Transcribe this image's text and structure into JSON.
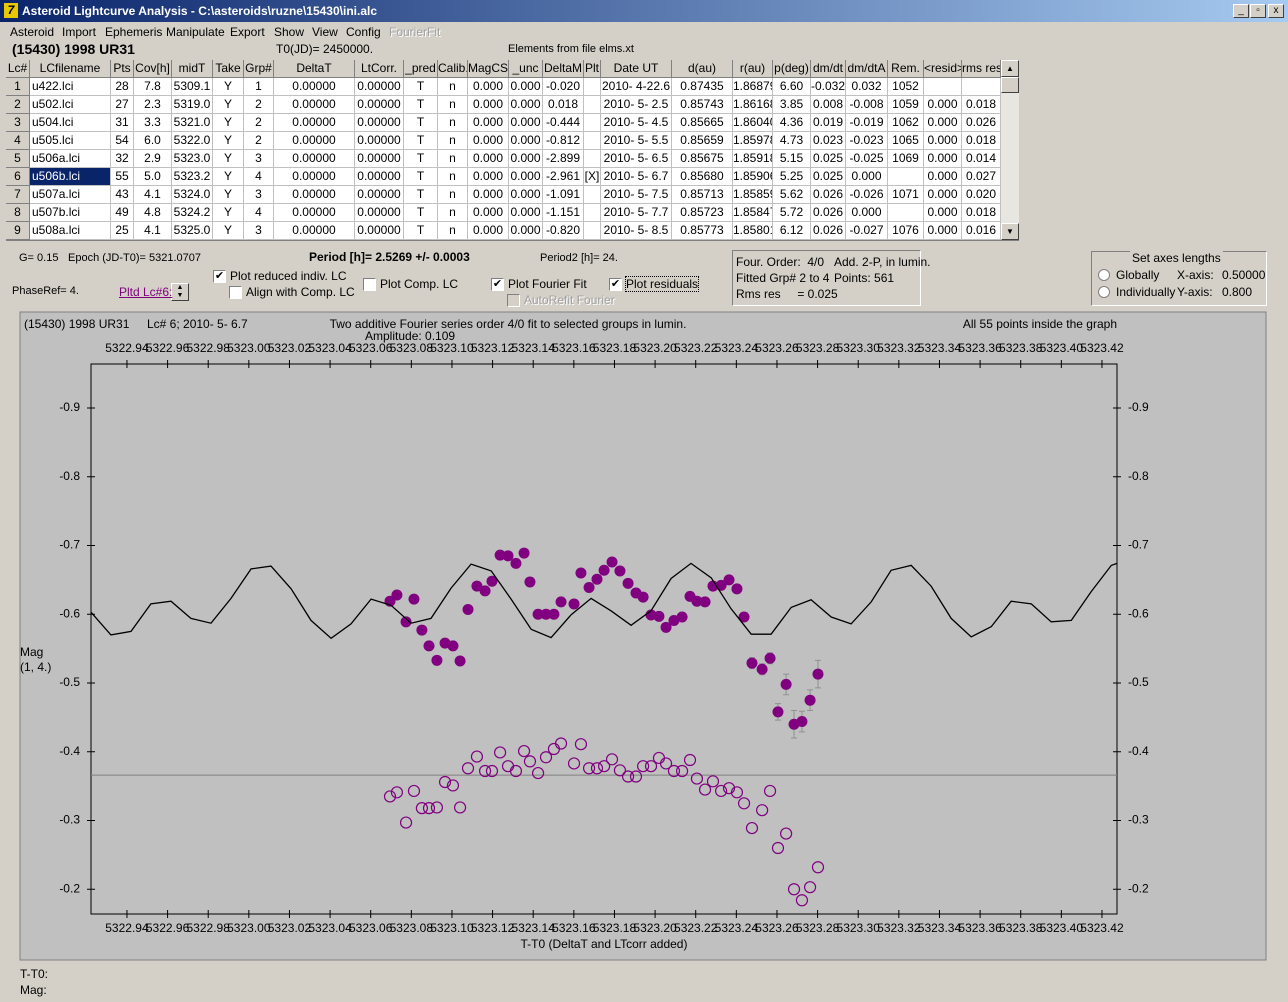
{
  "window": {
    "title": "Asteroid Lightcurve Analysis - C:\\asteroids\\ruzne\\15430\\ini.alc"
  },
  "menu": [
    {
      "label": "Asteroid"
    },
    {
      "label": "Import"
    },
    {
      "label": "Ephemeris"
    },
    {
      "label": "Manipulate"
    },
    {
      "label": "Export"
    },
    {
      "label": "Show"
    },
    {
      "label": "View"
    },
    {
      "label": "Config"
    },
    {
      "label": "FourierFit",
      "disabled": true
    }
  ],
  "header": {
    "object": "(15430) 1998 UR31",
    "t0": "T0(JD)= 2450000.",
    "elements": "Elements from file elms.xt"
  },
  "table": {
    "columns": [
      "Lc#",
      "LCfilename",
      "Pts",
      "Cov[h]",
      "midT",
      "Take",
      "Grp#",
      "DeltaT",
      "LtCorr.",
      "_pred",
      "Calib.",
      "MagCS",
      "_unc",
      "DeltaM",
      "Plt",
      "Date UT",
      "d(au)",
      "r(au)",
      "p(deg)",
      "dm/dt",
      "dm/dtA",
      "Rem.",
      "<resid>",
      "rms res"
    ],
    "selected_row": 5,
    "rows": [
      [
        "1",
        "u422.lci",
        "28",
        "7.8",
        "5309.1",
        "Y",
        "1",
        "0.00000",
        "0.00000",
        "T",
        "n",
        "0.000",
        "0.000",
        "-0.020",
        null,
        "2010- 4-22.6",
        "0.87435",
        "1.86879",
        "6.60",
        "-0.032",
        "0.032",
        "1052",
        null,
        null
      ],
      [
        "2",
        "u502.lci",
        "27",
        "2.3",
        "5319.0",
        "Y",
        "2",
        "0.00000",
        "0.00000",
        "T",
        "n",
        "0.000",
        "0.000",
        "0.018",
        null,
        "2010- 5- 2.5",
        "0.85743",
        "1.86168",
        "3.85",
        "0.008",
        "-0.008",
        "1059",
        "0.000",
        "0.018"
      ],
      [
        "3",
        "u504.lci",
        "31",
        "3.3",
        "5321.0",
        "Y",
        "2",
        "0.00000",
        "0.00000",
        "T",
        "n",
        "0.000",
        "0.000",
        "-0.444",
        null,
        "2010- 5- 4.5",
        "0.85665",
        "1.86040",
        "4.36",
        "0.019",
        "-0.019",
        "1062",
        "0.000",
        "0.026"
      ],
      [
        "4",
        "u505.lci",
        "54",
        "6.0",
        "5322.0",
        "Y",
        "2",
        "0.00000",
        "0.00000",
        "T",
        "n",
        "0.000",
        "0.000",
        "-0.812",
        null,
        "2010- 5- 5.5",
        "0.85659",
        "1.85978",
        "4.73",
        "0.023",
        "-0.023",
        "1065",
        "0.000",
        "0.018"
      ],
      [
        "5",
        "u506a.lci",
        "32",
        "2.9",
        "5323.0",
        "Y",
        "3",
        "0.00000",
        "0.00000",
        "T",
        "n",
        "0.000",
        "0.000",
        "-2.899",
        null,
        "2010- 5- 6.5",
        "0.85675",
        "1.85918",
        "5.15",
        "0.025",
        "-0.025",
        "1069",
        "0.000",
        "0.014"
      ],
      [
        "6",
        "u506b.lci",
        "55",
        "5.0",
        "5323.2",
        "Y",
        "4",
        "0.00000",
        "0.00000",
        "T",
        "n",
        "0.000",
        "0.000",
        "-2.961",
        "[X]",
        "2010- 5- 6.7",
        "0.85680",
        "1.85906",
        "5.25",
        "0.025",
        "0.000",
        null,
        "0.000",
        "0.027"
      ],
      [
        "7",
        "u507a.lci",
        "43",
        "4.1",
        "5324.0",
        "Y",
        "3",
        "0.00000",
        "0.00000",
        "T",
        "n",
        "0.000",
        "0.000",
        "-1.091",
        null,
        "2010- 5- 7.5",
        "0.85713",
        "1.85859",
        "5.62",
        "0.026",
        "-0.026",
        "1071",
        "0.000",
        "0.020"
      ],
      [
        "8",
        "u507b.lci",
        "49",
        "4.8",
        "5324.2",
        "Y",
        "4",
        "0.00000",
        "0.00000",
        "T",
        "n",
        "0.000",
        "0.000",
        "-1.151",
        null,
        "2010- 5- 7.7",
        "0.85723",
        "1.85847",
        "5.72",
        "0.026",
        "0.000",
        null,
        "0.000",
        "0.018"
      ],
      [
        "9",
        "u508a.lci",
        "25",
        "4.1",
        "5325.0",
        "Y",
        "3",
        "0.00000",
        "0.00000",
        "T",
        "n",
        "0.000",
        "0.000",
        "-0.820",
        null,
        "2010- 5- 8.5",
        "0.85773",
        "1.85801",
        "6.12",
        "0.026",
        "-0.027",
        "1076",
        "0.000",
        "0.016"
      ]
    ]
  },
  "controls": {
    "g": "G= 0.15",
    "epoch": "Epoch (JD-T0)= 5321.0707",
    "period": "Period [h]= 2.5269 +/- 0.0003",
    "period2": "Period2 [h]= 24.",
    "phaseref": "PhaseRef= 4.",
    "pltd": "Pltd Lc#6:",
    "checkboxes": [
      {
        "label": "Plot reduced indiv. LC",
        "checked": true
      },
      {
        "label": "Align with Comp. LC",
        "checked": false
      },
      {
        "label": "Plot Comp. LC",
        "checked": false
      },
      {
        "label": "Plot Fourier Fit",
        "checked": true
      },
      {
        "label": "AutoRefit Fourier",
        "checked": false,
        "disabled": true
      },
      {
        "label": "Plot residuals",
        "checked": true,
        "focused": true
      }
    ],
    "fit_info": [
      "Four. Order:  4/0",
      "Add. 2-P, in lumin.",
      "Fitted Grp# 2 to 4",
      "Points: 561",
      "Rms res     = 0.025"
    ],
    "axes": {
      "title": "Set axes lengths",
      "options": [
        "Globally",
        "Individually"
      ],
      "x_label": "X-axis:",
      "x_value": "0.50000",
      "y_label": "Y-axis:",
      "y_value": "0.800"
    }
  },
  "chart_data": {
    "type": "scatter",
    "object": "(15430) 1998 UR31",
    "lc": "Lc# 6; 2010- 5- 6.7",
    "title": "Two additive Fourier series order 4/0 fit to selected groups in lumin.",
    "subtitle": "Amplitude: 0.109",
    "note": "All 55 points inside the graph",
    "x_label": "T-T0 (DeltaT and LTcorr added)",
    "y_label": [
      "Mag",
      "(1, 4.)"
    ],
    "xlim": [
      5322.9223,
      5323.4274
    ],
    "ylim": [
      -0.164,
      -0.964
    ],
    "xticks": [
      5322.94,
      5322.96,
      5322.98,
      {
        "value": 5323.0,
        "label": "5323.00"
      },
      5323.02,
      5323.04,
      5323.06,
      5323.08,
      {
        "value": 5323.1,
        "label": "5323.10"
      },
      5323.12,
      5323.14,
      5323.16,
      5323.18,
      {
        "value": 5323.2,
        "label": "5323.20"
      },
      5323.22,
      5323.24,
      5323.26,
      5323.28,
      {
        "value": 5323.3,
        "label": "5323.30"
      },
      5323.32,
      5323.34,
      5323.36,
      5323.38,
      {
        "value": 5323.4,
        "label": "5323.40"
      },
      5323.42
    ],
    "yticks": [
      -0.9,
      -0.8,
      -0.7,
      -0.6,
      -0.5,
      -0.4,
      -0.3,
      -0.2
    ],
    "x": [
      5323.0695,
      5323.0729,
      5323.0774,
      5323.0813,
      5323.0852,
      5323.0887,
      5323.0926,
      5323.0966,
      5323.1005,
      5323.104,
      5323.1079,
      5323.1123,
      5323.1163,
      5323.1197,
      5323.1237,
      5323.1276,
      5323.1315,
      5323.1355,
      5323.1384,
      5323.1424,
      5323.1463,
      5323.1502,
      5323.1537,
      5323.1601,
      5323.1635,
      5323.1675,
      5323.1714,
      5323.1749,
      5323.1788,
      5323.1827,
      5323.1867,
      5323.1906,
      5323.1941,
      5323.198,
      5323.2019,
      5323.2054,
      5323.2093,
      5323.2133,
      5323.2172,
      5323.2206,
      5323.2246,
      5323.2285,
      5323.2325,
      5323.2364,
      5323.2403,
      5323.2438,
      5323.2477,
      5323.2527,
      5323.2566,
      5323.2605,
      5323.2645,
      5323.2684,
      5323.2723,
      5323.2763,
      5323.2802
    ],
    "hline": -0.366,
    "hline_color": "#808080",
    "series": [
      {
        "style": "filled",
        "color": "#800080",
        "error_color": "#909090",
        "values": [
          -0.619,
          -0.628,
          -0.589,
          -0.622,
          -0.577,
          -0.554,
          -0.533,
          -0.558,
          -0.554,
          -0.532,
          -0.607,
          -0.641,
          -0.634,
          -0.648,
          -0.686,
          -0.685,
          -0.674,
          -0.689,
          -0.647,
          -0.6,
          -0.6,
          -0.6,
          -0.618,
          -0.615,
          -0.66,
          -0.639,
          -0.651,
          -0.664,
          -0.676,
          -0.663,
          -0.645,
          -0.631,
          -0.625,
          -0.599,
          -0.597,
          -0.581,
          -0.591,
          -0.596,
          -0.626,
          -0.619,
          -0.618,
          -0.641,
          -0.642,
          -0.65,
          -0.637,
          -0.596,
          -0.529,
          -0.52,
          -0.536,
          -0.458,
          -0.498,
          -0.44,
          -0.444,
          -0.475,
          -0.513
        ],
        "errors": [
          0.004,
          0.004,
          0.004,
          0.004,
          0.004,
          0.004,
          0.004,
          0.004,
          0.004,
          0.004,
          0.004,
          0.004,
          0.004,
          0.004,
          0.004,
          0.004,
          0.004,
          0.004,
          0.004,
          0.004,
          0.004,
          0.004,
          0.004,
          0.004,
          0.004,
          0.004,
          0.004,
          0.004,
          0.004,
          0.004,
          0.004,
          0.004,
          0.004,
          0.004,
          0.004,
          0.004,
          0.004,
          0.004,
          0.004,
          0.004,
          0.004,
          0.004,
          0.004,
          0.004,
          0.004,
          0.004,
          0.008,
          0.008,
          0.008,
          0.012,
          0.015,
          0.02,
          0.015,
          0.015,
          0.02
        ]
      },
      {
        "style": "open",
        "color": "#800080",
        "values": [
          -0.335,
          -0.341,
          -0.297,
          -0.343,
          -0.318,
          -0.318,
          -0.319,
          -0.356,
          -0.351,
          -0.319,
          -0.376,
          -0.393,
          -0.372,
          -0.372,
          -0.399,
          -0.379,
          -0.372,
          -0.401,
          -0.386,
          -0.369,
          -0.392,
          -0.404,
          -0.412,
          -0.383,
          -0.411,
          -0.376,
          -0.376,
          -0.379,
          -0.389,
          -0.373,
          -0.364,
          -0.364,
          -0.379,
          -0.379,
          -0.391,
          -0.383,
          -0.372,
          -0.372,
          -0.388,
          -0.361,
          -0.345,
          -0.357,
          -0.343,
          -0.347,
          -0.341,
          -0.325,
          -0.289,
          -0.315,
          -0.343,
          -0.26,
          -0.281,
          -0.2,
          -0.184,
          -0.203,
          -0.232
        ]
      },
      {
        "style": "line",
        "color": "#000000",
        "x": [
          5322.9223,
          5322.9321,
          5322.942,
          5322.9518,
          5322.9617,
          5322.9715,
          5322.9814,
          5322.9912,
          5323.0011,
          5323.0109,
          5323.0208,
          5323.0306,
          5323.0405,
          5323.0503,
          5323.0602,
          5323.07,
          5323.0799,
          5323.0897,
          5323.0996,
          5323.1094,
          5323.1193,
          5323.1291,
          5323.139,
          5323.1488,
          5323.1586,
          5323.1685,
          5323.1783,
          5323.1882,
          5323.198,
          5323.2079,
          5323.2177,
          5323.2276,
          5323.2374,
          5323.2473,
          5323.2571,
          5323.267,
          5323.2768,
          5323.2867,
          5323.2965,
          5323.3064,
          5323.3162,
          5323.3261,
          5323.3359,
          5323.3458,
          5323.3556,
          5323.3655,
          5323.3753,
          5323.3852,
          5323.395,
          5323.4049,
          5323.4147,
          5323.4246,
          5323.4274
        ],
        "values": [
          -0.603,
          -0.57,
          -0.575,
          -0.615,
          -0.619,
          -0.594,
          -0.587,
          -0.623,
          -0.666,
          -0.67,
          -0.637,
          -0.591,
          -0.565,
          -0.586,
          -0.622,
          -0.613,
          -0.587,
          -0.594,
          -0.638,
          -0.673,
          -0.663,
          -0.622,
          -0.578,
          -0.566,
          -0.599,
          -0.623,
          -0.605,
          -0.584,
          -0.605,
          -0.652,
          -0.674,
          -0.653,
          -0.608,
          -0.571,
          -0.571,
          -0.61,
          -0.621,
          -0.596,
          -0.586,
          -0.618,
          -0.664,
          -0.671,
          -0.641,
          -0.594,
          -0.567,
          -0.582,
          -0.619,
          -0.615,
          -0.589,
          -0.591,
          -0.633,
          -0.671,
          -0.674
        ]
      }
    ]
  },
  "status": [
    "T-T0:",
    "Mag:"
  ]
}
